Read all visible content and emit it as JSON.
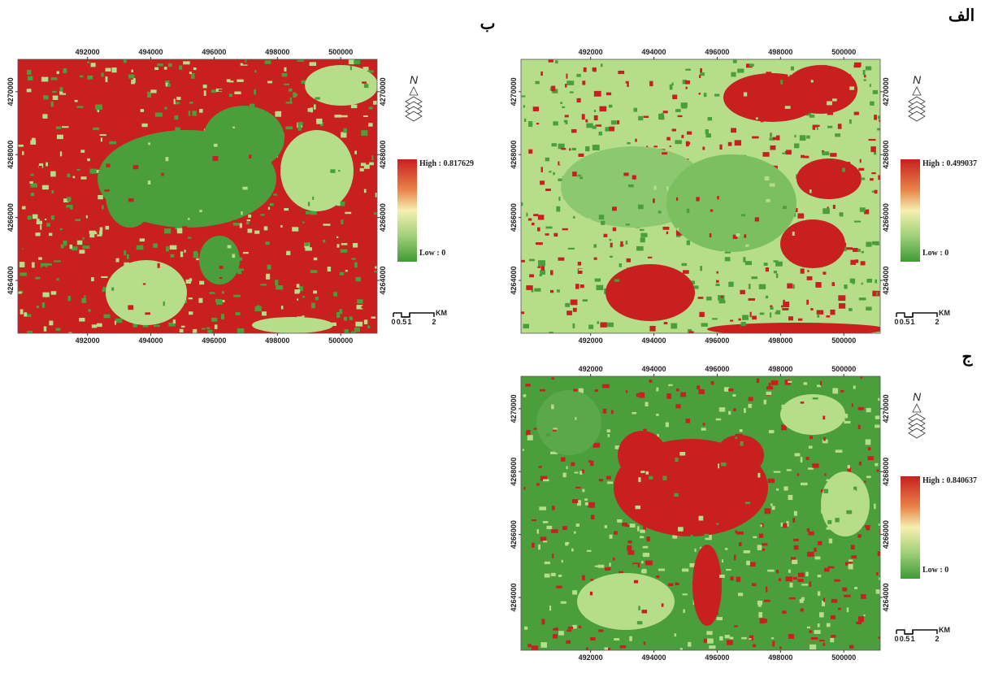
{
  "panels": [
    {
      "label": "الف",
      "north": "N",
      "legend": {
        "high": "High : 0.499037",
        "low": "Low : 0"
      },
      "xlim": [
        489800,
        501150
      ],
      "ylim": [
        4262320,
        4271030
      ],
      "x_ticks": [
        492000,
        494000,
        496000,
        498000,
        500000
      ],
      "y_ticks": [
        4270000,
        4268000,
        4266000,
        4264000
      ],
      "scale": {
        "labels": [
          "0",
          "0.5",
          "1",
          "2"
        ],
        "unit": "KM"
      }
    },
    {
      "label": "ب",
      "north": "N",
      "legend": {
        "high": "High : 0.817629",
        "low": "Low : 0"
      },
      "xlim": [
        489800,
        501150
      ],
      "ylim": [
        4262320,
        4271030
      ],
      "x_ticks": [
        492000,
        494000,
        496000,
        498000,
        500000
      ],
      "y_ticks": [
        4270000,
        4268000,
        4266000,
        4264000
      ],
      "scale": {
        "labels": [
          "0",
          "0.5",
          "1",
          "2"
        ],
        "unit": "KM"
      }
    },
    {
      "label": "ج",
      "north": "N",
      "legend": {
        "high": "High : 0.840637",
        "low": "Low : 0"
      },
      "xlim": [
        489800,
        501150
      ],
      "ylim": [
        4262320,
        4271030
      ],
      "x_ticks": [
        492000,
        494000,
        496000,
        498000,
        500000
      ],
      "y_ticks": [
        4270000,
        4268000,
        4266000,
        4264000
      ],
      "scale": {
        "labels": [
          "0",
          "0.5",
          "1",
          "2"
        ],
        "unit": "KM"
      }
    }
  ]
}
